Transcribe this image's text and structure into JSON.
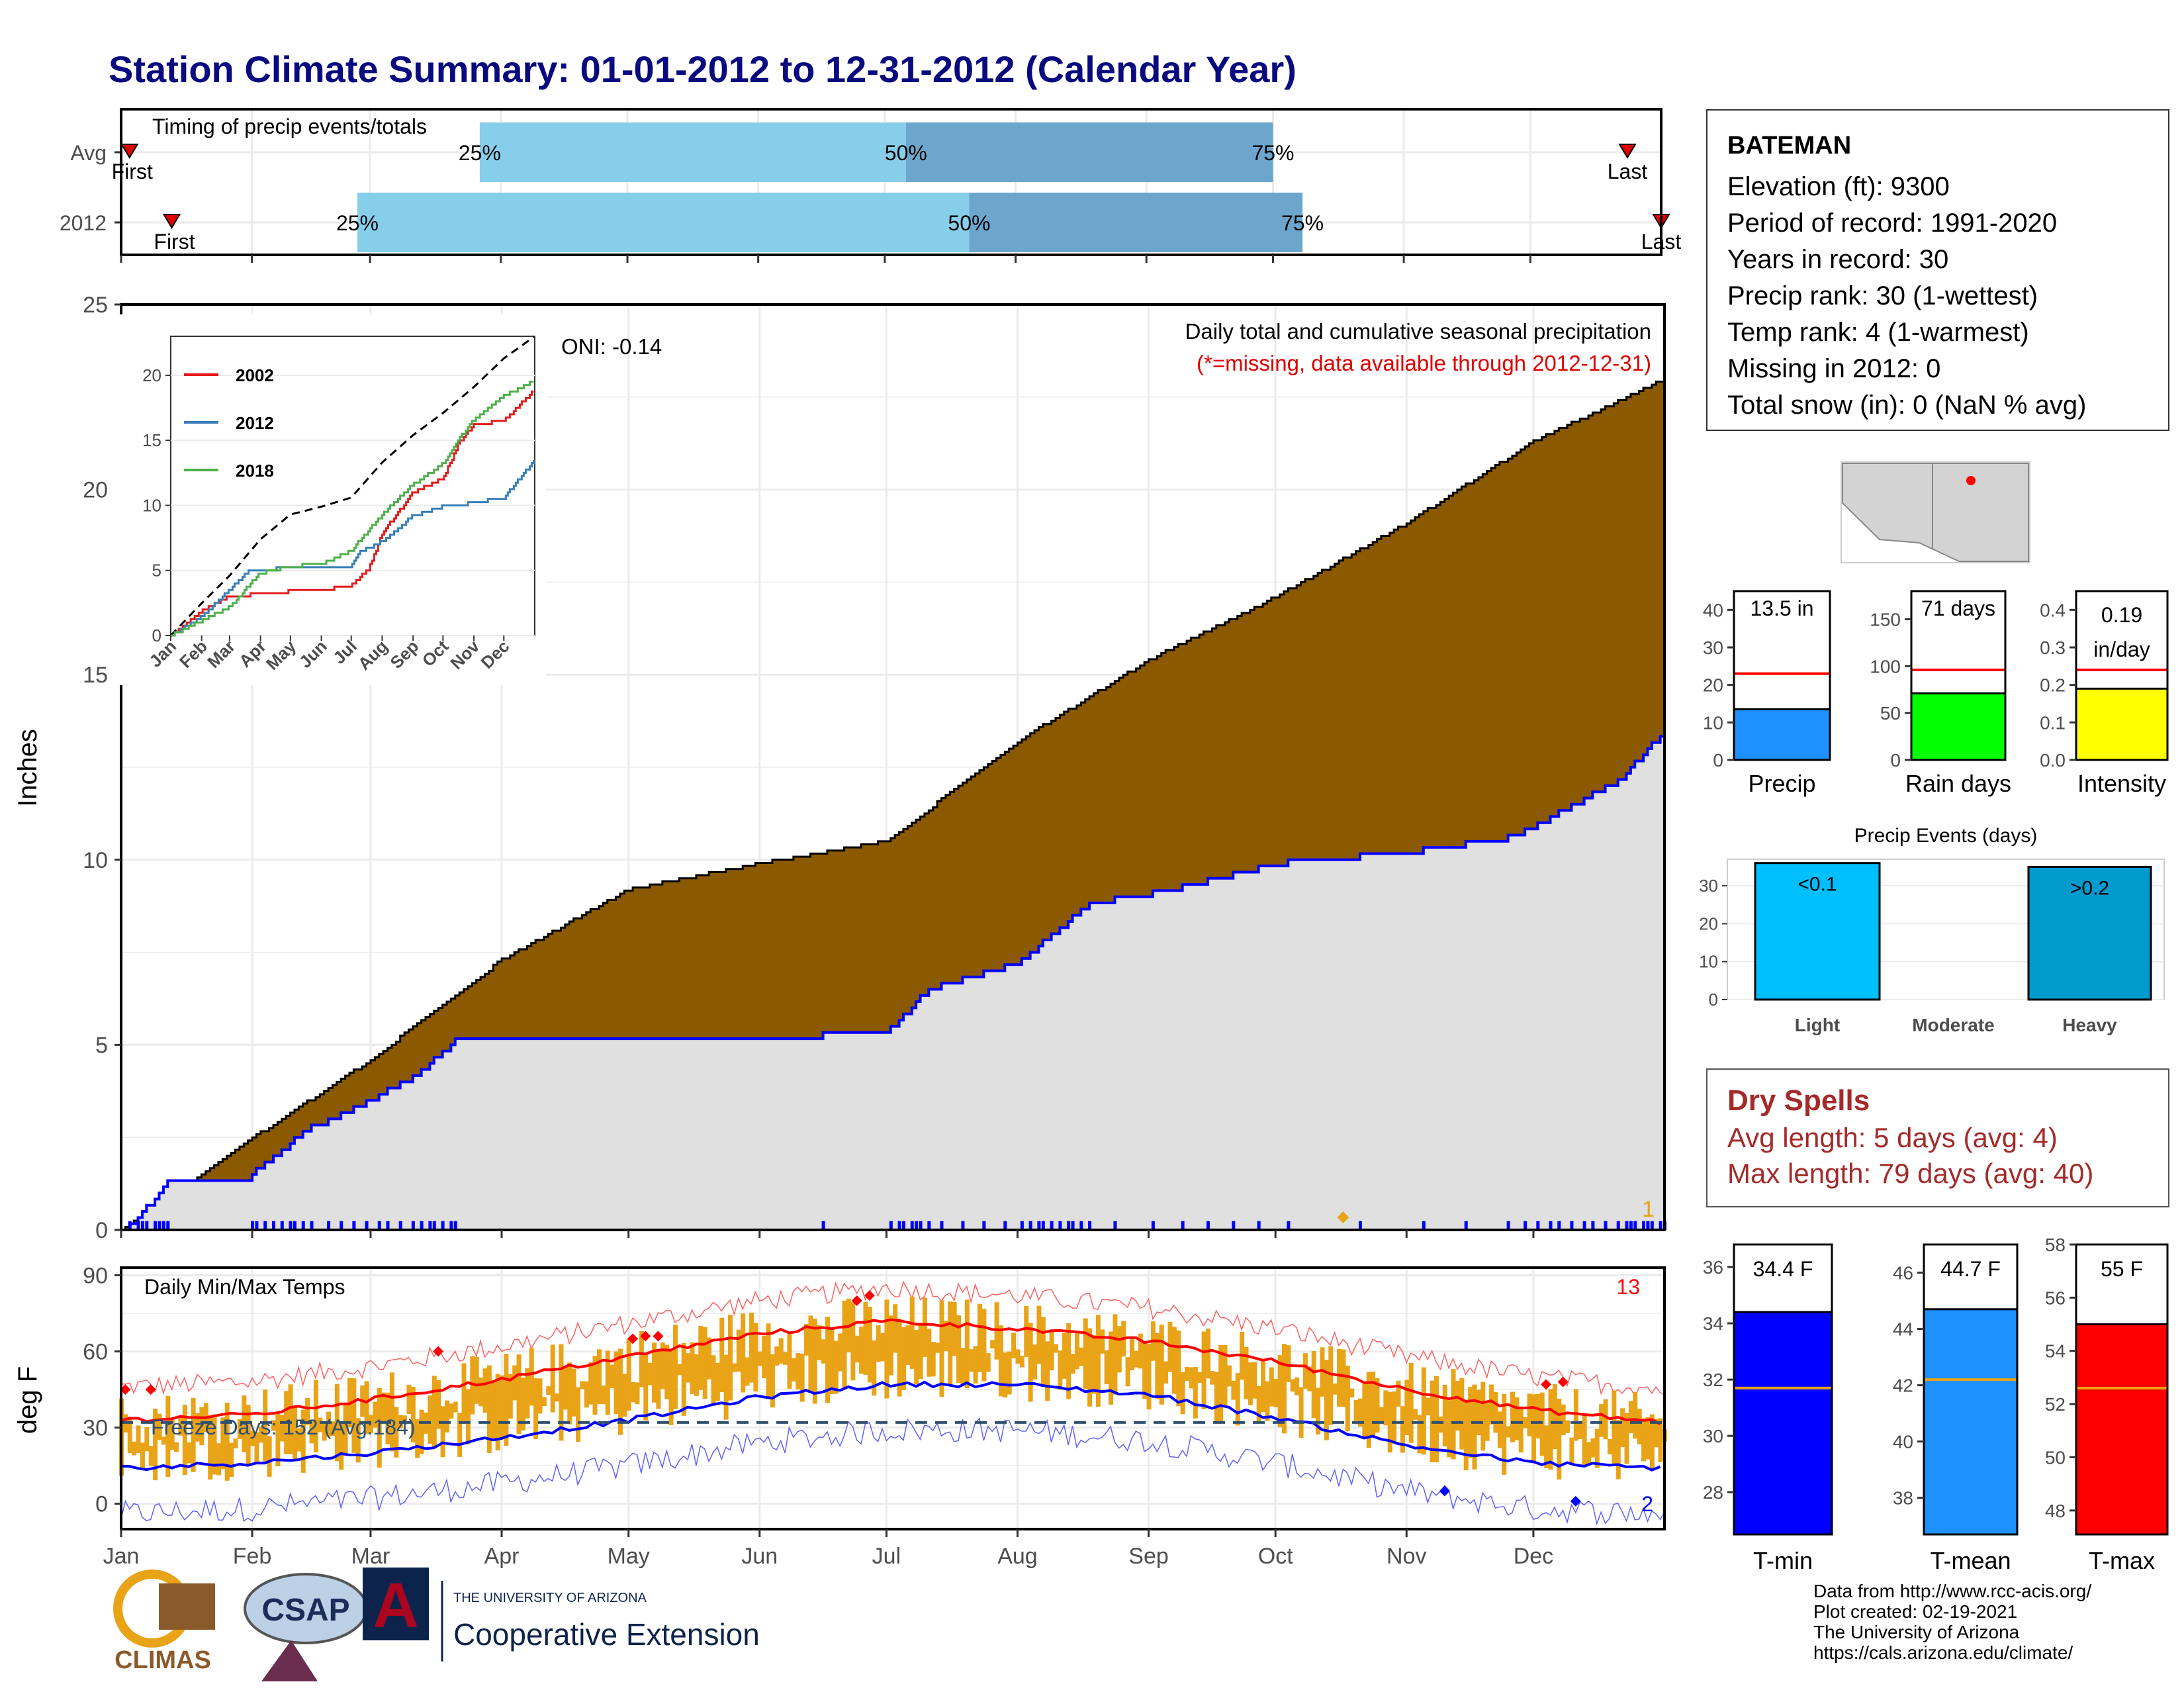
{
  "title": "Station Climate Summary: 01-01-2012 to 12-31-2012 (Calendar Year)",
  "colors": {
    "title": "#0a0a80",
    "accum_fill": "#8B5A00",
    "year_fill": "#E0E0E0",
    "year_line": "#0000ff",
    "timing_light": "#87CEEB",
    "timing_dark": "#6CA6CD",
    "tmax": "#ff0000",
    "tmin": "#0000ff",
    "range_bar": "#E8A317",
    "precip_bar": "#1E90FF",
    "rain_bar": "#00FF00",
    "intensity_bar": "#FFFF00",
    "light_bar": "#00BFFF",
    "heavy_bar": "#009ACD",
    "dry_spells": "#a52a2a"
  },
  "timing": {
    "title": "Timing of precip events/totals",
    "rows": [
      {
        "label": "Avg",
        "first_label": "First",
        "last_label": "Last",
        "p25_label": "25%",
        "p50_label": "50%",
        "p75_label": "75%",
        "first_day": 3,
        "p25_day": 86,
        "p50_day": 187,
        "p75_day": 274,
        "last_day": 358
      },
      {
        "label": "2012",
        "first_label": "First",
        "last_label": "Last",
        "p25_label": "25%",
        "p50_label": "50%",
        "p75_label": "75%",
        "first_day": 13,
        "p25_day": 57,
        "p50_day": 202,
        "p75_day": 281,
        "last_day": 366
      }
    ]
  },
  "station_info": {
    "name": "BATEMAN",
    "lines": [
      "Elevation (ft): 9300",
      "Period of record: 1991-2020",
      "Years in record: 30",
      "Precip rank: 30 (1-wettest)",
      "Temp rank: 4 (1-warmest)",
      "Missing in 2012: 0",
      "Total snow (in): 0 (NaN % avg)"
    ]
  },
  "precip_panel": {
    "ylabel": "Inches",
    "caption": "Daily total and cumulative seasonal precipitation",
    "missing_note": "(*=missing, data available through 2012-12-31)",
    "oni": "ONI: -0.14",
    "corner_count": "1",
    "yticks": [
      "0",
      "5",
      "10",
      "15",
      "20",
      "25"
    ]
  },
  "temp_panel": {
    "ylabel": "deg F",
    "caption": "Daily Min/Max Temps",
    "freeze_text": "Freeze Days: 152 (Avg:184)",
    "record_high_count": "13",
    "record_low_count": "2",
    "yticks": [
      "0",
      "30",
      "60",
      "90"
    ]
  },
  "months": [
    "Jan",
    "Feb",
    "Mar",
    "Apr",
    "May",
    "Jun",
    "Jul",
    "Aug",
    "Sep",
    "Oct",
    "Nov",
    "Dec"
  ],
  "inset": {
    "months": [
      "Jan",
      "Feb",
      "Mar",
      "Apr",
      "May",
      "Jun",
      "Jul",
      "Aug",
      "Sep",
      "Oct",
      "Nov",
      "Dec"
    ],
    "yticks": [
      "0",
      "5",
      "10",
      "15",
      "20"
    ],
    "legend": [
      {
        "name": "2002",
        "color": "#e41a1c"
      },
      {
        "name": "2012",
        "color": "#377eb8"
      },
      {
        "name": "2018",
        "color": "#4daf4a"
      }
    ]
  },
  "summary_bars": [
    {
      "label": "Precip",
      "value_text": "13.5 in",
      "ticks": [
        "0",
        "10",
        "20",
        "30",
        "40"
      ]
    },
    {
      "label": "Rain days",
      "value_text": "71 days",
      "ticks": [
        "0",
        "50",
        "100",
        "150"
      ]
    },
    {
      "label": "Intensity",
      "value_line1": "0.19",
      "value_line2": "in/day",
      "ticks": [
        "0.0",
        "0.1",
        "0.2",
        "0.3",
        "0.4"
      ]
    }
  ],
  "precip_events": {
    "title": "Precip Events (days)",
    "categories": [
      "Light",
      "Moderate",
      "Heavy"
    ],
    "labels": [
      "<0.1",
      "",
      ">0.2"
    ],
    "ticks": [
      "0",
      "10",
      "20",
      "30"
    ]
  },
  "dry_spells": {
    "title": "Dry Spells",
    "avg_line": "Avg length: 5 days (avg: 4)",
    "max_line": "Max length: 79 days (avg: 40)"
  },
  "temp_bars": [
    {
      "label": "T-min",
      "value_text": "34.4 F",
      "ticks": [
        "28",
        "30",
        "32",
        "34",
        "36"
      ]
    },
    {
      "label": "T-mean",
      "value_text": "44.7 F",
      "ticks": [
        "38",
        "40",
        "42",
        "44",
        "46"
      ]
    },
    {
      "label": "T-max",
      "value_text": "55 F",
      "ticks": [
        "48",
        "50",
        "52",
        "54",
        "56",
        "58"
      ]
    }
  ],
  "logos": {
    "climas": "CLIMAS",
    "csap": "CSAP",
    "ua_small": "THE UNIVERSITY OF ARIZONA",
    "coop": "Cooperative Extension"
  },
  "credits": [
    "Data from http://www.rcc-acis.org/",
    "Plot created: 02-19-2021",
    "The University of Arizona",
    "https://cals.arizona.edu/climate/"
  ],
  "chart_data": [
    {
      "type": "area",
      "title": "Daily total and cumulative seasonal precipitation",
      "ylabel": "Inches",
      "ylim": [
        0,
        25
      ],
      "x_unit": "day of year",
      "series": [
        {
          "name": "Average cumulative",
          "x": [
            1,
            31,
            60,
            91,
            121,
            152,
            182,
            213,
            244,
            274,
            305,
            335,
            366
          ],
          "values": [
            0,
            2.4,
            4.6,
            7.3,
            9.2,
            9.9,
            10.5,
            13.2,
            15.4,
            17.1,
            19.1,
            21.3,
            23.0
          ]
        },
        {
          "name": "2012 cumulative",
          "x": [
            1,
            5,
            12,
            19,
            31,
            45,
            60,
            71,
            80,
            100,
            128,
            152,
            182,
            192,
            213,
            230,
            250,
            275,
            305,
            330,
            345,
            356,
            366
          ],
          "values": [
            0,
            0.3,
            1.3,
            1.3,
            1.4,
            2.7,
            3.5,
            4.2,
            5.1,
            5.2,
            5.2,
            5.2,
            5.3,
            6.5,
            7.2,
            8.8,
            9.2,
            9.9,
            10.2,
            10.6,
            11.5,
            12.2,
            13.5
          ]
        }
      ]
    },
    {
      "type": "line",
      "title": "Daily Min/Max Temps",
      "ylabel": "deg F",
      "ylim": [
        -10,
        93
      ],
      "x_unit": "day of year",
      "series": [
        {
          "name": "Avg max",
          "x": [
            1,
            31,
            60,
            91,
            121,
            152,
            182,
            213,
            244,
            274,
            305,
            335,
            366
          ],
          "values": [
            33,
            35,
            41,
            49,
            58,
            67,
            72,
            69,
            64,
            56,
            45,
            37,
            32
          ]
        },
        {
          "name": "Avg min",
          "x": [
            1,
            31,
            60,
            91,
            121,
            152,
            182,
            213,
            244,
            274,
            305,
            335,
            366
          ],
          "values": [
            14,
            16,
            20,
            26,
            33,
            42,
            47,
            47,
            43,
            34,
            23,
            16,
            14
          ]
        },
        {
          "name": "Freeze line",
          "x": [
            1,
            366
          ],
          "values": [
            32,
            32
          ]
        }
      ]
    },
    {
      "type": "line",
      "title": "",
      "ylim": [
        0,
        23
      ],
      "x_unit": "day of year",
      "series": [
        {
          "name": "Average",
          "x": [
            1,
            31,
            60,
            91,
            121,
            152,
            182,
            213,
            244,
            274,
            305,
            335,
            366
          ],
          "values": [
            0,
            2.4,
            4.6,
            7.4,
            9.3,
            9.9,
            10.6,
            13.3,
            15.4,
            17.1,
            19.1,
            21.3,
            23.0
          ]
        },
        {
          "name": "2002",
          "x": [
            1,
            31,
            60,
            91,
            121,
            152,
            182,
            200,
            213,
            244,
            274,
            290,
            305,
            335,
            366
          ],
          "values": [
            0,
            1.8,
            3.0,
            3.2,
            3.4,
            3.5,
            3.8,
            5.2,
            7.8,
            11.0,
            12.1,
            14.8,
            16.2,
            16.5,
            18.9
          ]
        },
        {
          "name": "2012",
          "x": [
            1,
            31,
            60,
            80,
            121,
            152,
            182,
            192,
            213,
            244,
            274,
            305,
            335,
            366
          ],
          "values": [
            0,
            1.4,
            3.5,
            5.0,
            5.2,
            5.2,
            5.3,
            6.5,
            7.2,
            9.2,
            9.9,
            10.2,
            10.6,
            13.5
          ]
        },
        {
          "name": "2018",
          "x": [
            1,
            31,
            60,
            91,
            121,
            152,
            182,
            213,
            244,
            274,
            290,
            305,
            335,
            366
          ],
          "values": [
            0,
            1.1,
            2.2,
            4.8,
            5.3,
            5.5,
            6.5,
            9.3,
            11.6,
            13.2,
            15.1,
            16.6,
            18.4,
            19.6
          ]
        }
      ]
    },
    {
      "type": "bar",
      "title": "",
      "categories": [
        "Precip"
      ],
      "values": [
        13.5
      ],
      "normal": [
        23.0
      ],
      "ylim": [
        0,
        45
      ]
    },
    {
      "type": "bar",
      "title": "",
      "categories": [
        "Rain days"
      ],
      "values": [
        71
      ],
      "normal": [
        96
      ],
      "ylim": [
        0,
        180
      ]
    },
    {
      "type": "bar",
      "title": "",
      "categories": [
        "Intensity"
      ],
      "values": [
        0.19
      ],
      "normal": [
        0.24
      ],
      "ylim": [
        0,
        0.45
      ]
    },
    {
      "type": "bar",
      "title": "Precip Events (days)",
      "categories": [
        "Light",
        "Moderate",
        "Heavy"
      ],
      "values": [
        36,
        0,
        35
      ],
      "ylim": [
        0,
        37
      ]
    },
    {
      "type": "bar",
      "title": "",
      "categories": [
        "T-min"
      ],
      "values": [
        34.4
      ],
      "normal": [
        31.7
      ],
      "ylim": [
        26.5,
        36.8
      ]
    },
    {
      "type": "bar",
      "title": "",
      "categories": [
        "T-mean"
      ],
      "values": [
        44.7
      ],
      "normal": [
        42.2
      ],
      "ylim": [
        36.7,
        47.0
      ]
    },
    {
      "type": "bar",
      "title": "",
      "categories": [
        "T-max"
      ],
      "values": [
        55
      ],
      "normal": [
        52.6
      ],
      "ylim": [
        47.1,
        58.0
      ]
    }
  ]
}
